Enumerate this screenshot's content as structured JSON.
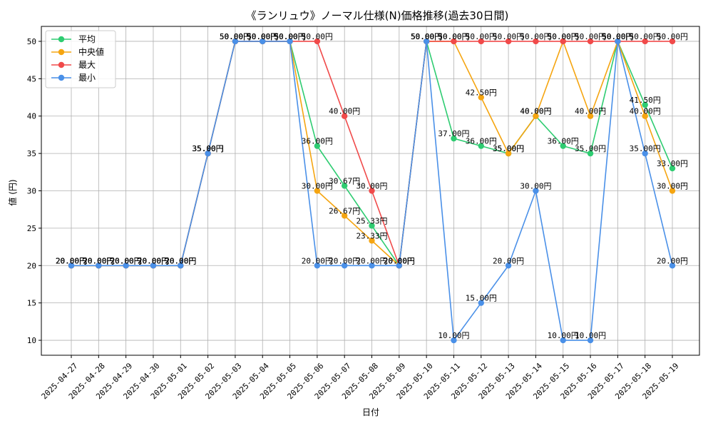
{
  "chart_data": {
    "type": "line",
    "title": "《ランリュウ》ノーマル仕様(N)価格推移(過去30日間)",
    "xlabel": "日付",
    "ylabel": "値 (円)",
    "ylim": [
      8,
      52
    ],
    "yticks": [
      10,
      15,
      20,
      25,
      30,
      35,
      40,
      45,
      50
    ],
    "grid": true,
    "legend_position": "top-left",
    "value_suffix": "円",
    "categories": [
      "2025-04-27",
      "2025-04-28",
      "2025-04-29",
      "2025-04-30",
      "2025-05-01",
      "2025-05-02",
      "2025-05-03",
      "2025-05-04",
      "2025-05-05",
      "2025-05-06",
      "2025-05-07",
      "2025-05-08",
      "2025-05-09",
      "2025-05-10",
      "2025-05-11",
      "2025-05-12",
      "2025-05-13",
      "2025-05-14",
      "2025-05-15",
      "2025-05-16",
      "2025-05-17",
      "2025-05-18",
      "2025-05-19"
    ],
    "series": [
      {
        "name": "平均",
        "color": "#2ecc71",
        "values": [
          20,
          20,
          20,
          20,
          20,
          35,
          50,
          50,
          50,
          36,
          30.67,
          25.33,
          20,
          50,
          37,
          36,
          35,
          40,
          36,
          35,
          50,
          41.5,
          33
        ]
      },
      {
        "name": "中央値",
        "color": "#f5a511",
        "values": [
          20,
          20,
          20,
          20,
          20,
          35,
          50,
          50,
          50,
          30,
          26.67,
          23.33,
          20,
          50,
          50,
          42.5,
          35,
          40,
          50,
          40,
          50,
          40,
          30
        ]
      },
      {
        "name": "最大",
        "color": "#f04a4a",
        "values": [
          20,
          20,
          20,
          20,
          20,
          35,
          50,
          50,
          50,
          50,
          40,
          30,
          20,
          50,
          50,
          50,
          50,
          50,
          50,
          50,
          50,
          50,
          50
        ]
      },
      {
        "name": "最小",
        "color": "#4a90e8",
        "values": [
          20,
          20,
          20,
          20,
          20,
          35,
          50,
          50,
          50,
          20,
          20,
          20,
          20,
          50,
          10,
          15,
          20,
          30,
          10,
          10,
          50,
          35,
          20
        ]
      }
    ]
  }
}
